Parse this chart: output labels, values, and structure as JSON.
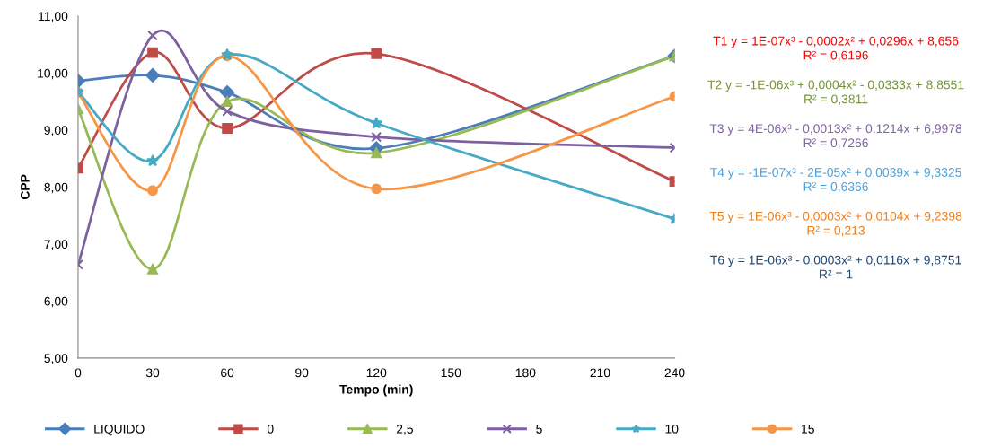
{
  "chart_data": {
    "type": "line",
    "xlabel": "Tempo (min)",
    "ylabel": "CPP",
    "x": [
      0,
      30,
      60,
      120,
      240
    ],
    "xlim": [
      0,
      240
    ],
    "xticks": [
      0,
      30,
      60,
      90,
      120,
      150,
      180,
      210,
      240
    ],
    "ylim": [
      5,
      11
    ],
    "yticks": [
      {
        "value": 5,
        "label": "5,00"
      },
      {
        "value": 6,
        "label": "6,00"
      },
      {
        "value": 7,
        "label": "7,00"
      },
      {
        "value": 8,
        "label": "8,00"
      },
      {
        "value": 9,
        "label": "9,00"
      },
      {
        "value": 10,
        "label": "10,00"
      },
      {
        "value": 11,
        "label": "11,00"
      }
    ],
    "grid": false,
    "legend": "bottom",
    "series": [
      {
        "name": "LIQUIDO",
        "color": "#4a7ebb",
        "marker": "diamond",
        "values": [
          9.86,
          9.96,
          9.66,
          8.68,
          10.3
        ]
      },
      {
        "name": "0",
        "color": "#be4b48",
        "marker": "square",
        "values": [
          8.33,
          10.36,
          9.03,
          10.34,
          8.1
        ]
      },
      {
        "name": "2,5",
        "color": "#98b954",
        "marker": "triangle",
        "values": [
          9.37,
          6.56,
          9.5,
          8.6,
          10.3
        ]
      },
      {
        "name": "5",
        "color": "#7d60a0",
        "marker": "cross",
        "values": [
          6.64,
          10.66,
          9.33,
          8.88,
          8.69
        ]
      },
      {
        "name": "10",
        "color": "#46aac5",
        "marker": "star",
        "values": [
          9.67,
          8.46,
          10.32,
          9.12,
          7.44
        ]
      },
      {
        "name": "15",
        "color": "#f79646",
        "marker": "circle",
        "values": [
          9.66,
          7.94,
          10.3,
          7.97,
          9.59
        ]
      }
    ],
    "annotations": [
      "T1 y = 1E-07x³ - 0,0002x² + 0,0296x + 8,656\nR² = 0,6196",
      "T2 y = -1E-06x³ + 0,0004x² - 0,0333x + 8,8551\nR² = 0,3811",
      "T3 y = 4E-06x³ - 0,0013x² + 0,1214x + 6,9978\nR² = 0,7266",
      "T4 y = -1E-07x³ - 2E-05x² + 0,0039x + 9,3325\nR² = 0,6366",
      "T5 y = 1E-06x³ - 0,0003x² + 0,0104x + 9,2398\nR² = 0,213",
      "T6 y = 1E-06x³ - 0,0003x² + 0,0116x + 9,8751\nR² = 1"
    ]
  }
}
